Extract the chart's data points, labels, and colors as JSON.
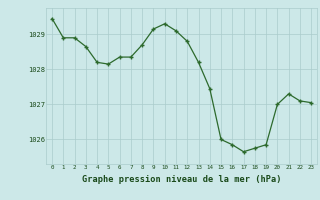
{
  "x": [
    0,
    1,
    2,
    3,
    4,
    5,
    6,
    7,
    8,
    9,
    10,
    11,
    12,
    13,
    14,
    15,
    16,
    17,
    18,
    19,
    20,
    21,
    22,
    23
  ],
  "y": [
    1029.45,
    1028.9,
    1028.9,
    1028.65,
    1028.2,
    1028.15,
    1028.35,
    1028.35,
    1028.7,
    1029.15,
    1029.3,
    1029.1,
    1028.8,
    1028.2,
    1027.45,
    1026.0,
    1025.85,
    1025.65,
    1025.75,
    1025.85,
    1027.0,
    1027.3,
    1027.1,
    1027.05
  ],
  "line_color": "#2d6a2d",
  "marker_color": "#2d6a2d",
  "bg_color": "#cce8e8",
  "grid_color": "#aacccc",
  "xlabel": "Graphe pression niveau de la mer (hPa)",
  "xlabel_color": "#1a4a1a",
  "tick_color": "#1a4a1a",
  "ylim": [
    1025.3,
    1029.75
  ],
  "yticks": [
    1026,
    1027,
    1028,
    1029
  ],
  "xticks": [
    0,
    1,
    2,
    3,
    4,
    5,
    6,
    7,
    8,
    9,
    10,
    11,
    12,
    13,
    14,
    15,
    16,
    17,
    18,
    19,
    20,
    21,
    22,
    23
  ],
  "fig_bg_color": "#cce8e8"
}
